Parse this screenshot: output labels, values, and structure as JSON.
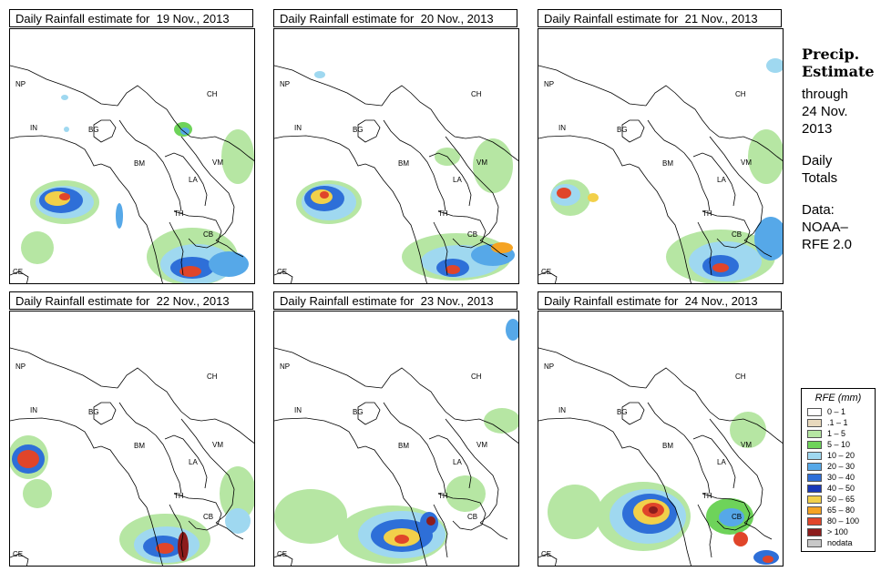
{
  "panels": [
    {
      "title": "Daily Rainfall estimate for  19 Nov., 2013"
    },
    {
      "title": "Daily Rainfall estimate for  20 Nov., 2013"
    },
    {
      "title": "Daily Rainfall estimate for  21 Nov., 2013"
    },
    {
      "title": "Daily Rainfall estimate for  22 Nov., 2013"
    },
    {
      "title": "Daily Rainfall estimate for  23 Nov., 2013"
    },
    {
      "title": "Daily Rainfall estimate for  24 Nov., 2013"
    }
  ],
  "country_labels": [
    "NP",
    "CH",
    "IN",
    "BG",
    "BM",
    "VM",
    "LA",
    "TH",
    "CB",
    "CE"
  ],
  "side": {
    "heading_line1": "Precip.",
    "heading_line2": "Estimate",
    "through": "through",
    "date_line1": "24 Nov.",
    "date_line2": "2013",
    "totals_line1": "Daily",
    "totals_line2": "Totals",
    "data_line1": "Data:",
    "data_line2": "NOAA–",
    "data_line3": "RFE 2.0"
  },
  "legend": {
    "title": "RFE (mm)",
    "items": [
      {
        "label": "0 – 1",
        "color": "#ffffff"
      },
      {
        "label": ".1 – 1",
        "color": "#e8d9bd"
      },
      {
        "label": "1 – 5",
        "color": "#b6e6a3"
      },
      {
        "label": "5 – 10",
        "color": "#6ed35a"
      },
      {
        "label": "10 – 20",
        "color": "#9fd8f0"
      },
      {
        "label": "20 – 30",
        "color": "#56a8e8"
      },
      {
        "label": "30 – 40",
        "color": "#2e6fd8"
      },
      {
        "label": "40 – 50",
        "color": "#1838b8"
      },
      {
        "label": "50 – 65",
        "color": "#f2d04a"
      },
      {
        "label": "65 – 80",
        "color": "#f5a323"
      },
      {
        "label": "80 – 100",
        "color": "#e0452a"
      },
      {
        "label": "> 100",
        "color": "#8c1c1c"
      },
      {
        "label": "nodata",
        "color": "#c8c8c8"
      }
    ]
  }
}
